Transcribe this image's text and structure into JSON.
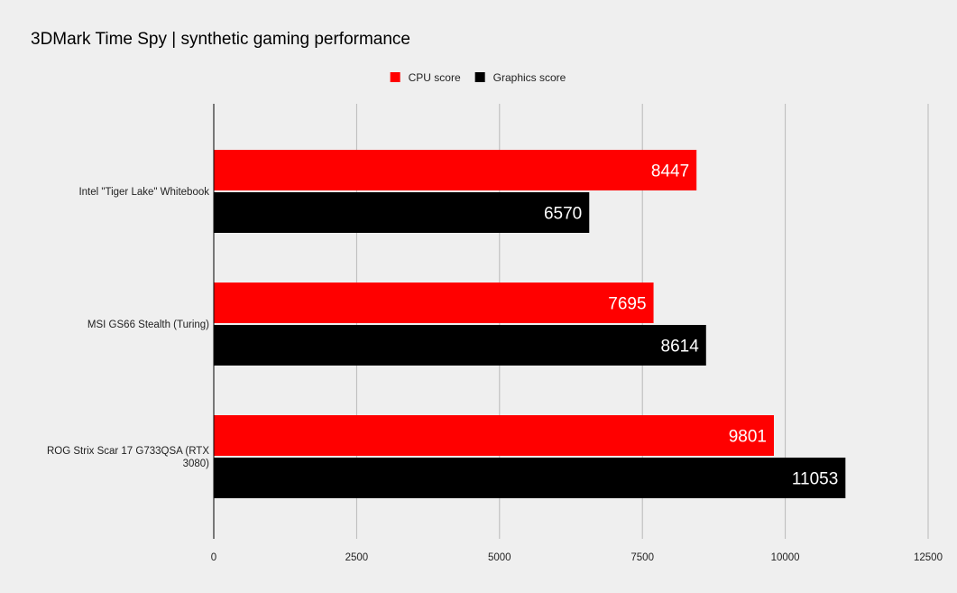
{
  "chart_data": {
    "type": "bar",
    "orientation": "horizontal",
    "title": "3DMark Time Spy | synthetic gaming performance",
    "categories": [
      "Intel \"Tiger Lake\" Whitebook",
      "MSI GS66 Stealth (Turing)",
      "ROG Strix Scar 17 G733QSA (RTX 3080)"
    ],
    "series": [
      {
        "name": "CPU score",
        "color": "#ff0000",
        "values": [
          8447,
          7695,
          9801
        ]
      },
      {
        "name": "Graphics score",
        "color": "#000000",
        "values": [
          6570,
          8614,
          11053
        ]
      }
    ],
    "xlim": [
      0,
      12500
    ],
    "xticks": [
      "0",
      "2500",
      "5000",
      "7500",
      "10000",
      "12500"
    ],
    "grid": true,
    "legend_position": "top-center",
    "data_labels": true
  }
}
